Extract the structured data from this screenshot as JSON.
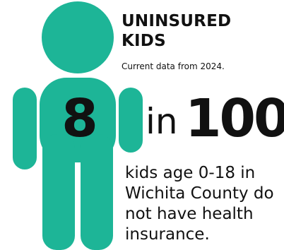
{
  "colors": {
    "figure": "#1db597",
    "text": "#111111",
    "background": "#ffffff"
  },
  "icon": "child-figure-icon",
  "title": "UNINSURED KIDS",
  "subtitle": "Current data from 2024.",
  "stat": {
    "numerator": "8",
    "joiner": "in",
    "denominator": "100",
    "fraction": 0.08
  },
  "description": "kids age 0-18 in Wichita County do not have health insurance."
}
